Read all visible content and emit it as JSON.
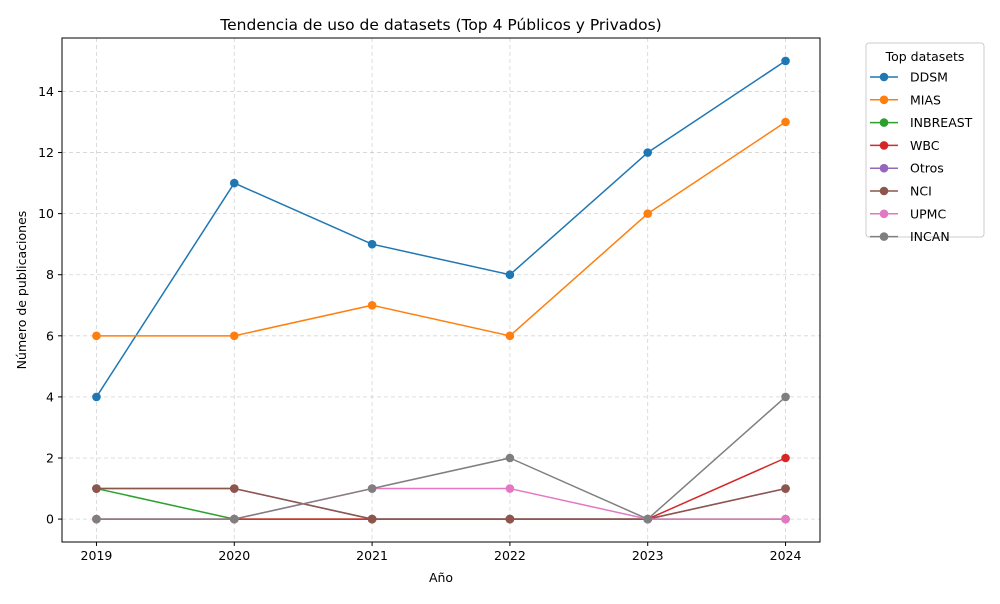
{
  "chart_data": {
    "type": "line",
    "title": "Tendencia de uso de datasets (Top 4 Públicos y Privados)",
    "xlabel": "Año",
    "ylabel": "Número de publicaciones",
    "x": [
      2019,
      2020,
      2021,
      2022,
      2023,
      2024
    ],
    "x_tick_labels": [
      "2019",
      "2020",
      "2021",
      "2022",
      "2023",
      "2024"
    ],
    "y_ticks": [
      0,
      2,
      4,
      6,
      8,
      10,
      12,
      14
    ],
    "xlim": [
      2018.75,
      2024.25
    ],
    "ylim": [
      -0.75,
      15.75
    ],
    "grid": true,
    "legend_title": "Top datasets",
    "legend_placement": "outside-top-right",
    "series": [
      {
        "name": "DDSM",
        "color": "#1f77b4",
        "values": [
          4,
          11,
          9,
          8,
          12,
          15
        ]
      },
      {
        "name": "MIAS",
        "color": "#ff7f0e",
        "values": [
          6,
          6,
          7,
          6,
          10,
          13
        ]
      },
      {
        "name": "INBREAST",
        "color": "#2ca02c",
        "values": [
          1,
          0,
          0,
          0,
          0,
          0
        ]
      },
      {
        "name": "WBC",
        "color": "#d62728",
        "values": [
          0,
          0,
          0,
          0,
          0,
          2
        ]
      },
      {
        "name": "Otros",
        "color": "#9467bd",
        "values": [
          1,
          1,
          0,
          0,
          0,
          1
        ]
      },
      {
        "name": "NCI",
        "color": "#8c564b",
        "values": [
          1,
          1,
          0,
          0,
          0,
          1
        ]
      },
      {
        "name": "UPMC",
        "color": "#e377c2",
        "values": [
          0,
          0,
          1,
          1,
          0,
          0
        ]
      },
      {
        "name": "INCAN",
        "color": "#7f7f7f",
        "values": [
          0,
          0,
          1,
          2,
          0,
          4
        ]
      }
    ]
  }
}
